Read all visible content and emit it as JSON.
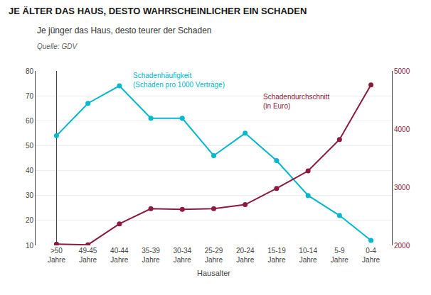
{
  "chart_data": {
    "type": "line",
    "title": "JE ÄLTER DAS HAUS, DESTO WAHRSCHEINLICHER EIN SCHADEN",
    "subtitle": "Je jünger das Haus, desto teurer der Schaden",
    "source": "Quelle: GDV",
    "x_label": "Hausalter",
    "categories": [
      ">50\nJahre",
      "49-45\nJahre",
      "40-44\nJahre",
      "35-39\nJahre",
      "30-34\nJahre",
      "25-29\nJahre",
      "20-24\nJahre",
      "15-19\nJahre",
      "10-14\nJahre",
      "5-9\nJahre",
      "0-4\nJahre"
    ],
    "series": [
      {
        "name": "Schadenhäufigkeit\n(Schäden pro 1000 Verträge)",
        "color": "#00B8CC",
        "marker": "circle",
        "line_style": "solid",
        "values": [
          54,
          67,
          74,
          61,
          61,
          46,
          55,
          44,
          30,
          22,
          12
        ]
      },
      {
        "name": "Schadendurchschnitt\n(in Euro)",
        "color": "#8B1A3C",
        "marker": "circle",
        "line_style": "solid",
        "axis": "y2",
        "values": [
          2020,
          2010,
          2370,
          2630,
          2620,
          2630,
          2700,
          2980,
          3280,
          3820,
          4760
        ]
      }
    ],
    "ylim": [
      10,
      80
    ],
    "yticks": [
      10,
      20,
      30,
      40,
      50,
      60,
      70,
      80
    ],
    "y2lim": [
      2000,
      5000
    ],
    "y2ticks": [
      2000,
      3000,
      4000,
      5000
    ],
    "grid": true
  }
}
